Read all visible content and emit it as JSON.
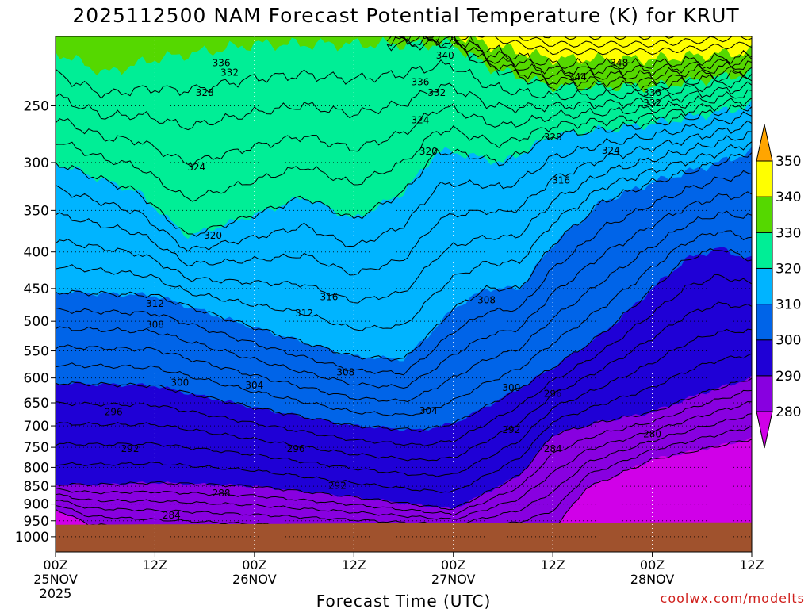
{
  "chart_data": {
    "type": "heatmap",
    "title": "2025112500 NAM Forecast Potential Temperature (K) for KRUT",
    "xlabel": "Forecast Time (UTC)",
    "ylabel": "",
    "credit": "coolwx.com/modelts",
    "x_range_hours": [
      0,
      84
    ],
    "y_range_hPa": [
      200,
      1050
    ],
    "y_ticks": [
      250,
      300,
      350,
      400,
      450,
      500,
      550,
      600,
      650,
      700,
      750,
      800,
      850,
      900,
      950,
      1000
    ],
    "x_ticks": [
      {
        "hour": 0,
        "label": "00Z",
        "date": "25NOV",
        "year": "2025"
      },
      {
        "hour": 12,
        "label": "12Z",
        "date": "",
        "year": ""
      },
      {
        "hour": 24,
        "label": "00Z",
        "date": "26NOV",
        "year": ""
      },
      {
        "hour": 36,
        "label": "12Z",
        "date": "",
        "year": ""
      },
      {
        "hour": 48,
        "label": "00Z",
        "date": "27NOV",
        "year": ""
      },
      {
        "hour": 60,
        "label": "12Z",
        "date": "",
        "year": ""
      },
      {
        "hour": 72,
        "label": "00Z",
        "date": "28NOV",
        "year": ""
      },
      {
        "hour": 84,
        "label": "12Z",
        "date": "",
        "year": ""
      }
    ],
    "colorbar": {
      "levels": [
        280,
        290,
        300,
        310,
        320,
        330,
        340,
        350
      ],
      "labels": [
        "280",
        "290",
        "300",
        "310",
        "320",
        "330",
        "340",
        "350"
      ],
      "colors": [
        "#d000e8",
        "#8800e0",
        "#1f00d6",
        "#0064e8",
        "#00b4ff",
        "#00ee96",
        "#55d800",
        "#ffff00",
        "#ffa500"
      ]
    },
    "surface_pressure_hPa": [
      962,
      961,
      960,
      958,
      957,
      956,
      955,
      955
    ],
    "surface_hours": [
      0,
      12,
      24,
      36,
      48,
      60,
      72,
      84
    ],
    "surface_color": "#a0522d",
    "boundaries": [
      {
        "value": 280,
        "hours": [
          0,
          4,
          12,
          24,
          36,
          48,
          56,
          60,
          64,
          72,
          84
        ],
        "pressure": [
          915,
          960,
          975,
          990,
          995,
          995,
          990,
          978,
          855,
          780,
          730
        ]
      },
      {
        "value": 290,
        "hours": [
          0,
          6,
          12,
          24,
          36,
          48,
          56,
          60,
          66,
          72,
          78,
          84
        ],
        "pressure": [
          845,
          845,
          840,
          850,
          880,
          915,
          820,
          720,
          690,
          670,
          630,
          600
        ]
      },
      {
        "value": 300,
        "hours": [
          0,
          12,
          24,
          36,
          44,
          48,
          56,
          60,
          66,
          72,
          76,
          80,
          84
        ],
        "pressure": [
          610,
          615,
          660,
          700,
          710,
          695,
          620,
          580,
          520,
          450,
          410,
          395,
          410
        ]
      },
      {
        "value": 310,
        "hours": [
          0,
          12,
          24,
          36,
          42,
          48,
          52,
          56,
          60,
          66,
          72,
          80,
          84
        ],
        "pressure": [
          455,
          460,
          510,
          560,
          565,
          480,
          450,
          450,
          390,
          340,
          320,
          300,
          290
        ]
      },
      {
        "value": 320,
        "hours": [
          0,
          10,
          16,
          24,
          30,
          36,
          42,
          46,
          48,
          54,
          60,
          72,
          84
        ],
        "pressure": [
          300,
          330,
          380,
          355,
          335,
          360,
          330,
          290,
          290,
          300,
          275,
          265,
          250
        ]
      },
      {
        "value": 330,
        "hours": [
          0,
          6,
          12,
          24,
          36,
          48,
          52,
          60,
          72,
          84
        ],
        "pressure": [
          210,
          225,
          215,
          205,
          205,
          205,
          220,
          235,
          235,
          225
        ]
      },
      {
        "value": 340,
        "hours": [
          40,
          48,
          52,
          60,
          72,
          84
        ],
        "pressure": [
          195,
          198,
          205,
          215,
          215,
          210
        ]
      }
    ],
    "contour_labels": [
      {
        "text": "336",
        "hour": 20,
        "pressure": 218
      },
      {
        "text": "332",
        "hour": 21,
        "pressure": 225
      },
      {
        "text": "340",
        "hour": 47,
        "pressure": 213
      },
      {
        "text": "336",
        "hour": 44,
        "pressure": 232
      },
      {
        "text": "332",
        "hour": 46,
        "pressure": 240
      },
      {
        "text": "328",
        "hour": 18,
        "pressure": 240
      },
      {
        "text": "348",
        "hour": 68,
        "pressure": 218
      },
      {
        "text": "344",
        "hour": 63,
        "pressure": 228
      },
      {
        "text": "336",
        "hour": 72,
        "pressure": 240
      },
      {
        "text": "332",
        "hour": 72,
        "pressure": 248
      },
      {
        "text": "324",
        "hour": 44,
        "pressure": 262
      },
      {
        "text": "328",
        "hour": 60,
        "pressure": 277
      },
      {
        "text": "320",
        "hour": 45,
        "pressure": 290
      },
      {
        "text": "324",
        "hour": 67,
        "pressure": 289
      },
      {
        "text": "324",
        "hour": 17,
        "pressure": 305
      },
      {
        "text": "316",
        "hour": 61,
        "pressure": 318
      },
      {
        "text": "320",
        "hour": 19,
        "pressure": 380
      },
      {
        "text": "316",
        "hour": 33,
        "pressure": 463
      },
      {
        "text": "308",
        "hour": 52,
        "pressure": 468
      },
      {
        "text": "312",
        "hour": 12,
        "pressure": 473
      },
      {
        "text": "312",
        "hour": 30,
        "pressure": 488
      },
      {
        "text": "308",
        "hour": 12,
        "pressure": 506
      },
      {
        "text": "308",
        "hour": 35,
        "pressure": 590
      },
      {
        "text": "300",
        "hour": 15,
        "pressure": 610
      },
      {
        "text": "304",
        "hour": 24,
        "pressure": 615
      },
      {
        "text": "300",
        "hour": 55,
        "pressure": 620
      },
      {
        "text": "296",
        "hour": 60,
        "pressure": 632
      },
      {
        "text": "304",
        "hour": 45,
        "pressure": 668
      },
      {
        "text": "296",
        "hour": 7,
        "pressure": 670
      },
      {
        "text": "292",
        "hour": 55,
        "pressure": 710
      },
      {
        "text": "280",
        "hour": 72,
        "pressure": 720
      },
      {
        "text": "292",
        "hour": 9,
        "pressure": 755
      },
      {
        "text": "296",
        "hour": 29,
        "pressure": 755
      },
      {
        "text": "284",
        "hour": 60,
        "pressure": 755
      },
      {
        "text": "288",
        "hour": 20,
        "pressure": 870
      },
      {
        "text": "292",
        "hour": 34,
        "pressure": 850
      },
      {
        "text": "284",
        "hour": 14,
        "pressure": 935
      }
    ]
  }
}
